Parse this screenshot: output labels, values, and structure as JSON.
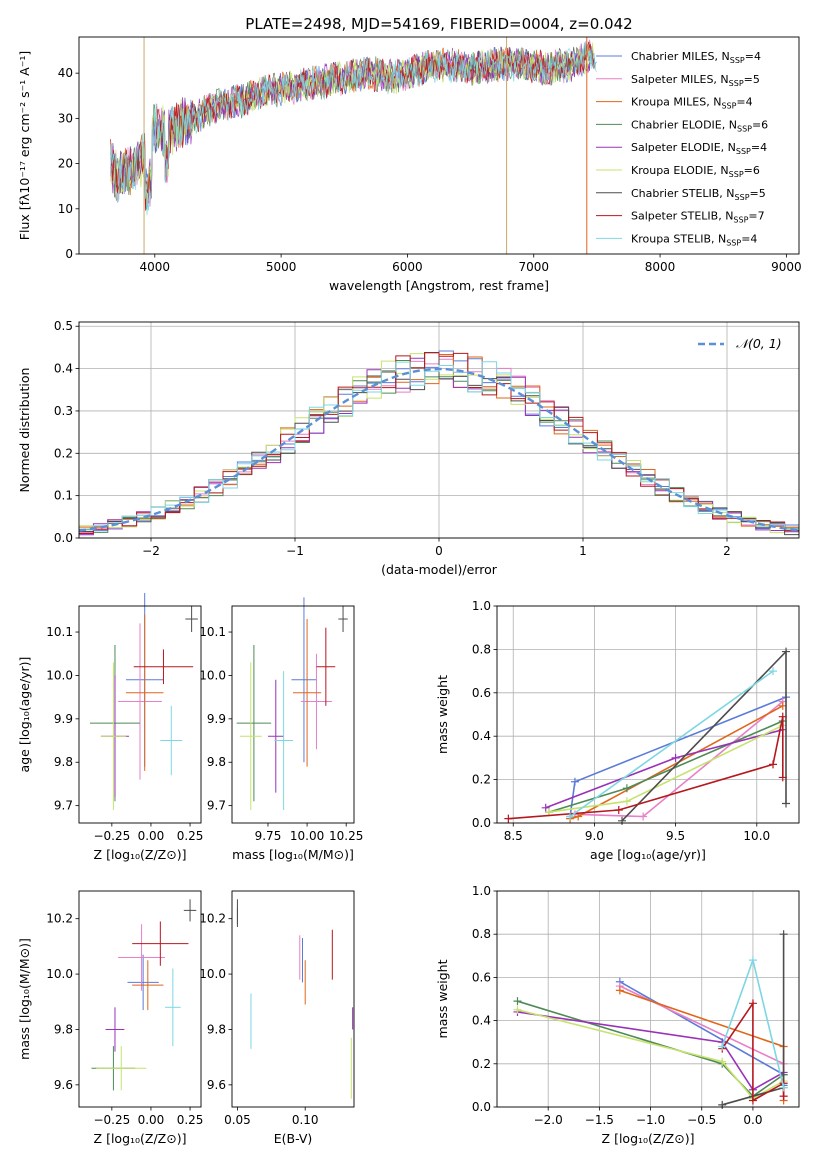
{
  "colors": [
    "#5b7bd9",
    "#e87fc8",
    "#e0661a",
    "#4f8a55",
    "#9932b8",
    "#c5e36e",
    "#4d4d4d",
    "#b5181e",
    "#7dd7e3"
  ],
  "legend_labels": [
    "Chabrier MILES, N",
    "Salpeter MILES, N",
    "Kroupa MILES, N",
    "Chabrier ELODIE, N",
    "Salpeter ELODIE, N",
    "Kroupa ELODIE, N",
    "Chabrier STELIB, N",
    "Salpeter STELIB, N",
    "Kroupa STELIB, N"
  ],
  "legend_sub": "SSP",
  "legend_counts": [
    "=4",
    "=5",
    "=4",
    "=6",
    "=4",
    "=6",
    "=5",
    "=7",
    "=4"
  ],
  "chart_data": [
    {
      "type": "line",
      "id": "spectrum",
      "title": "PLATE=2498, MJD=54169, FIBERID=0004, z=0.042",
      "xlabel": "wavelength [Angstrom, rest frame]",
      "ylabel": "Flux [fλ10⁻¹⁷ erg cm⁻² s⁻¹ A⁻¹]",
      "xlim": [
        3400,
        9100
      ],
      "ylim": [
        0,
        48
      ],
      "xticks": [
        4000,
        5000,
        6000,
        7000,
        8000,
        9000
      ],
      "yticks": [
        0,
        10,
        20,
        30,
        40
      ],
      "grid": false,
      "continuum": [
        [
          3650,
          20
        ],
        [
          3700,
          17
        ],
        [
          3800,
          18
        ],
        [
          3900,
          21
        ],
        [
          4000,
          28
        ],
        [
          4100,
          27
        ],
        [
          4300,
          30
        ],
        [
          4500,
          33
        ],
        [
          4700,
          34
        ],
        [
          4900,
          36
        ],
        [
          5100,
          37
        ],
        [
          5300,
          38
        ],
        [
          5500,
          39
        ],
        [
          5700,
          40
        ],
        [
          5900,
          39
        ],
        [
          6100,
          41
        ],
        [
          6300,
          42
        ],
        [
          6500,
          41
        ],
        [
          6700,
          42
        ],
        [
          6900,
          42
        ],
        [
          7100,
          41
        ],
        [
          7300,
          42
        ],
        [
          7450,
          44
        ],
        [
          7550,
          42
        ]
      ],
      "vlines": [
        {
          "x": 3915,
          "color": "#c8a86a"
        },
        {
          "x": 6785,
          "color": "#c8a86a"
        },
        {
          "x": 7420,
          "color": "#e0661a"
        }
      ],
      "legend_position": "upper-right"
    },
    {
      "type": "step",
      "id": "residuals",
      "xlabel": "(data-model)/error",
      "ylabel": "Normed distribution",
      "xlim": [
        -2.5,
        2.5
      ],
      "ylim": [
        0,
        0.51
      ],
      "xticks": [
        -2,
        -1,
        0,
        1,
        2
      ],
      "xtick_labels": [
        "−2",
        "−1",
        "0",
        "1",
        "2"
      ],
      "yticks": [
        0.0,
        0.1,
        0.2,
        0.3,
        0.4,
        0.5
      ],
      "ytick_labels": [
        "0.0",
        "0.1",
        "0.2",
        "0.3",
        "0.4",
        "0.5"
      ],
      "grid": true,
      "bin_width": 0.1,
      "bin_start": -2.5,
      "gauss_label": "𝒩(0, 1)",
      "legend_position": "upper-right"
    },
    {
      "type": "errorbar",
      "id": "z-age",
      "xlabel": "Z [log₁₀(Z/Z⊙)]",
      "ylabel": "age  [log₁₀(age/yr)]",
      "xlim": [
        -0.46,
        0.32
      ],
      "ylim": [
        9.66,
        10.16
      ],
      "xticks": [
        -0.25,
        0.0,
        0.25
      ],
      "xtick_labels": [
        "−0.25",
        "0.00",
        "0.25"
      ],
      "yticks": [
        9.7,
        9.8,
        9.9,
        10.0,
        10.1
      ],
      "ytick_labels": [
        "9.7",
        "9.8",
        "9.9",
        "10.0",
        "10.1"
      ],
      "points": [
        {
          "x": -0.04,
          "y": 9.99,
          "xerr": 0.12,
          "yerr": 0.2
        },
        {
          "x": -0.07,
          "y": 9.94,
          "xerr": 0.14,
          "yerr": 0.18
        },
        {
          "x": -0.04,
          "y": 9.96,
          "xerr": 0.12,
          "yerr": 0.18
        },
        {
          "x": -0.23,
          "y": 9.89,
          "xerr": 0.16,
          "yerr": 0.18
        },
        {
          "x": -0.23,
          "y": 9.86,
          "xerr": 0.09,
          "yerr": 0.14
        },
        {
          "x": -0.24,
          "y": 9.86,
          "xerr": 0.08,
          "yerr": 0.17
        },
        {
          "x": 0.26,
          "y": 10.13,
          "xerr": 0.04,
          "yerr": 0.03
        },
        {
          "x": 0.08,
          "y": 10.02,
          "xerr": 0.19,
          "yerr": 0.04
        },
        {
          "x": 0.13,
          "y": 9.85,
          "xerr": 0.07,
          "yerr": 0.08
        }
      ]
    },
    {
      "type": "errorbar",
      "id": "mass-age",
      "xlabel": "mass [log₁₀(M/M⊙)]",
      "ylabel": "",
      "xlim": [
        9.52,
        10.3
      ],
      "ylim": [
        9.66,
        10.16
      ],
      "xticks": [
        9.75,
        10.0,
        10.25
      ],
      "xtick_labels": [
        "9.75",
        "10.00",
        "10.25"
      ],
      "yticks": [
        9.7,
        9.8,
        9.9,
        10.0,
        10.1
      ],
      "ytick_labels": [
        "9.7",
        "9.8",
        "9.9",
        "10.0",
        "10.1"
      ],
      "points": [
        {
          "x": 9.98,
          "y": 9.99,
          "xerr": 0.08,
          "yerr": 0.19
        },
        {
          "x": 10.06,
          "y": 9.94,
          "xerr": 0.1,
          "yerr": 0.11
        },
        {
          "x": 10.0,
          "y": 9.96,
          "xerr": 0.09,
          "yerr": 0.17
        },
        {
          "x": 9.66,
          "y": 9.89,
          "xerr": 0.11,
          "yerr": 0.18
        },
        {
          "x": 9.8,
          "y": 9.86,
          "xerr": 0.05,
          "yerr": 0.13
        },
        {
          "x": 9.64,
          "y": 9.86,
          "xerr": 0.07,
          "yerr": 0.17
        },
        {
          "x": 10.23,
          "y": 10.13,
          "xerr": 0.03,
          "yerr": 0.03
        },
        {
          "x": 10.12,
          "y": 10.02,
          "xerr": 0.06,
          "yerr": 0.09
        },
        {
          "x": 9.85,
          "y": 9.85,
          "xerr": 0.06,
          "yerr": 0.16
        }
      ]
    },
    {
      "type": "line",
      "id": "age-weight",
      "xlabel": "age  [log₁₀(age/yr)]",
      "ylabel": "mass weight",
      "xlim": [
        8.4,
        10.26
      ],
      "ylim": [
        0,
        1.0
      ],
      "xticks": [
        8.5,
        9.0,
        9.5,
        10.0
      ],
      "xtick_labels": [
        "8.5",
        "9.0",
        "9.5",
        "10.0"
      ],
      "yticks": [
        0.0,
        0.2,
        0.4,
        0.6,
        0.8,
        1.0
      ],
      "ytick_labels": [
        "0.0",
        "0.2",
        "0.4",
        "0.6",
        "0.8",
        "1.0"
      ],
      "grid": true,
      "series": [
        {
          "x": [
            8.85,
            8.88,
            10.18
          ],
          "y": [
            0.03,
            0.19,
            0.58
          ]
        },
        {
          "x": [
            8.88,
            9.3,
            10.16
          ],
          "y": [
            0.04,
            0.03,
            0.56
          ]
        },
        {
          "x": [
            8.85,
            8.9,
            10.16
          ],
          "y": [
            0.02,
            0.03,
            0.54
          ]
        },
        {
          "x": [
            8.72,
            9.2,
            10.16
          ],
          "y": [
            0.05,
            0.16,
            0.47
          ]
        },
        {
          "x": [
            8.7,
            9.5,
            10.16
          ],
          "y": [
            0.07,
            0.3,
            0.43
          ]
        },
        {
          "x": [
            8.72,
            9.2,
            10.16
          ],
          "y": [
            0.05,
            0.1,
            0.45
          ]
        },
        {
          "x": [
            9.17,
            10.18,
            10.18
          ],
          "y": [
            0.01,
            0.79,
            0.09
          ]
        },
        {
          "x": [
            8.47,
            9.15,
            10.1,
            10.16,
            10.16
          ],
          "y": [
            0.02,
            0.06,
            0.27,
            0.49,
            0.21
          ]
        },
        {
          "x": [
            8.85,
            10.1
          ],
          "y": [
            0.03,
            0.7
          ]
        }
      ]
    },
    {
      "type": "errorbar",
      "id": "z-mass",
      "xlabel": "Z [log₁₀(Z/Z⊙)]",
      "ylabel": "mass [log₁₀(M/M⊙)]",
      "xlim": [
        -0.46,
        0.32
      ],
      "ylim": [
        9.52,
        10.3
      ],
      "xticks": [
        -0.25,
        0.0,
        0.25
      ],
      "xtick_labels": [
        "−0.25",
        "0.00",
        "0.25"
      ],
      "yticks": [
        9.6,
        9.8,
        10.0,
        10.2
      ],
      "ytick_labels": [
        "9.6",
        "9.8",
        "10.0",
        "10.2"
      ],
      "points": [
        {
          "x": -0.05,
          "y": 9.97,
          "xerr": 0.1,
          "yerr": 0.1
        },
        {
          "x": -0.06,
          "y": 10.06,
          "xerr": 0.15,
          "yerr": 0.12
        },
        {
          "x": -0.02,
          "y": 9.96,
          "xerr": 0.1,
          "yerr": 0.09
        },
        {
          "x": -0.24,
          "y": 9.66,
          "xerr": 0.14,
          "yerr": 0.08
        },
        {
          "x": -0.23,
          "y": 9.8,
          "xerr": 0.06,
          "yerr": 0.08
        },
        {
          "x": -0.19,
          "y": 9.66,
          "xerr": 0.16,
          "yerr": 0.08
        },
        {
          "x": 0.25,
          "y": 10.23,
          "xerr": 0.04,
          "yerr": 0.04
        },
        {
          "x": 0.06,
          "y": 10.11,
          "xerr": 0.18,
          "yerr": 0.08
        },
        {
          "x": 0.14,
          "y": 9.88,
          "xerr": 0.05,
          "yerr": 0.14
        }
      ]
    },
    {
      "type": "errorbar",
      "id": "ebv-mass",
      "xlabel": "E(B-V)",
      "ylabel": "",
      "xlim": [
        0.046,
        0.136
      ],
      "ylim": [
        9.52,
        10.3
      ],
      "xticks": [
        0.05,
        0.1
      ],
      "xtick_labels": [
        "0.05",
        "0.10"
      ],
      "yticks": [
        9.6,
        9.8,
        10.0,
        10.2
      ],
      "ytick_labels": [
        "9.6",
        "9.8",
        "10.0",
        "10.2"
      ],
      "points": [
        {
          "x": 0.098,
          "y": 10.05,
          "xerr": 0,
          "yerr": 0.08
        },
        {
          "x": 0.096,
          "y": 10.06,
          "xerr": 0,
          "yerr": 0.08
        },
        {
          "x": 0.1,
          "y": 9.97,
          "xerr": 0,
          "yerr": 0.08
        },
        {
          "x": 0.05,
          "y": 10.21,
          "xerr": 0,
          "yerr": 0.03
        },
        {
          "x": 0.135,
          "y": 9.84,
          "xerr": 0,
          "yerr": 0.04
        },
        {
          "x": 0.134,
          "y": 9.66,
          "xerr": 0,
          "yerr": 0.11
        },
        {
          "x": 0.05,
          "y": 10.22,
          "xerr": 0,
          "yerr": 0.05
        },
        {
          "x": 0.12,
          "y": 10.07,
          "xerr": 0,
          "yerr": 0.09
        },
        {
          "x": 0.06,
          "y": 9.83,
          "xerr": 0,
          "yerr": 0.1
        }
      ]
    },
    {
      "type": "line",
      "id": "z-weight",
      "xlabel": "Z [log₁₀(Z/Z⊙)]",
      "ylabel": "mass weight",
      "xlim": [
        -2.5,
        0.45
      ],
      "ylim": [
        0,
        1.0
      ],
      "xticks": [
        -2.0,
        -1.5,
        -1.0,
        -0.5,
        0.0
      ],
      "xtick_labels": [
        "−2.0",
        "−1.5",
        "−1.0",
        "−0.5",
        "0.0"
      ],
      "yticks": [
        0.0,
        0.2,
        0.4,
        0.6,
        0.8,
        1.0
      ],
      "ytick_labels": [
        "0.0",
        "0.2",
        "0.4",
        "0.6",
        "0.8",
        "1.0"
      ],
      "grid": true,
      "series": [
        {
          "x": [
            -1.3,
            0.3,
            0.3
          ],
          "y": [
            0.58,
            0.15,
            0.1
          ]
        },
        {
          "x": [
            -1.3,
            0.3,
            0.3
          ],
          "y": [
            0.56,
            0.2,
            0.05
          ]
        },
        {
          "x": [
            -1.3,
            0.3,
            0.3
          ],
          "y": [
            0.54,
            0.28,
            0.03
          ]
        },
        {
          "x": [
            -2.3,
            -0.3,
            0.0,
            0.3
          ],
          "y": [
            0.49,
            0.2,
            0.05,
            0.15
          ]
        },
        {
          "x": [
            -2.3,
            -0.3,
            0.0,
            0.3
          ],
          "y": [
            0.44,
            0.3,
            0.08,
            0.16
          ]
        },
        {
          "x": [
            -2.3,
            -0.3,
            0.0,
            0.3
          ],
          "y": [
            0.45,
            0.21,
            0.04,
            0.12
          ]
        },
        {
          "x": [
            -0.3,
            0.3,
            0.3
          ],
          "y": [
            0.01,
            0.09,
            0.8
          ]
        },
        {
          "x": [
            -0.3,
            0.0,
            0.0,
            0.3,
            0.3
          ],
          "y": [
            0.27,
            0.48,
            0.03,
            0.11,
            0.05
          ]
        },
        {
          "x": [
            -0.3,
            0.0,
            0.3
          ],
          "y": [
            0.28,
            0.68,
            0.09
          ]
        }
      ]
    }
  ]
}
